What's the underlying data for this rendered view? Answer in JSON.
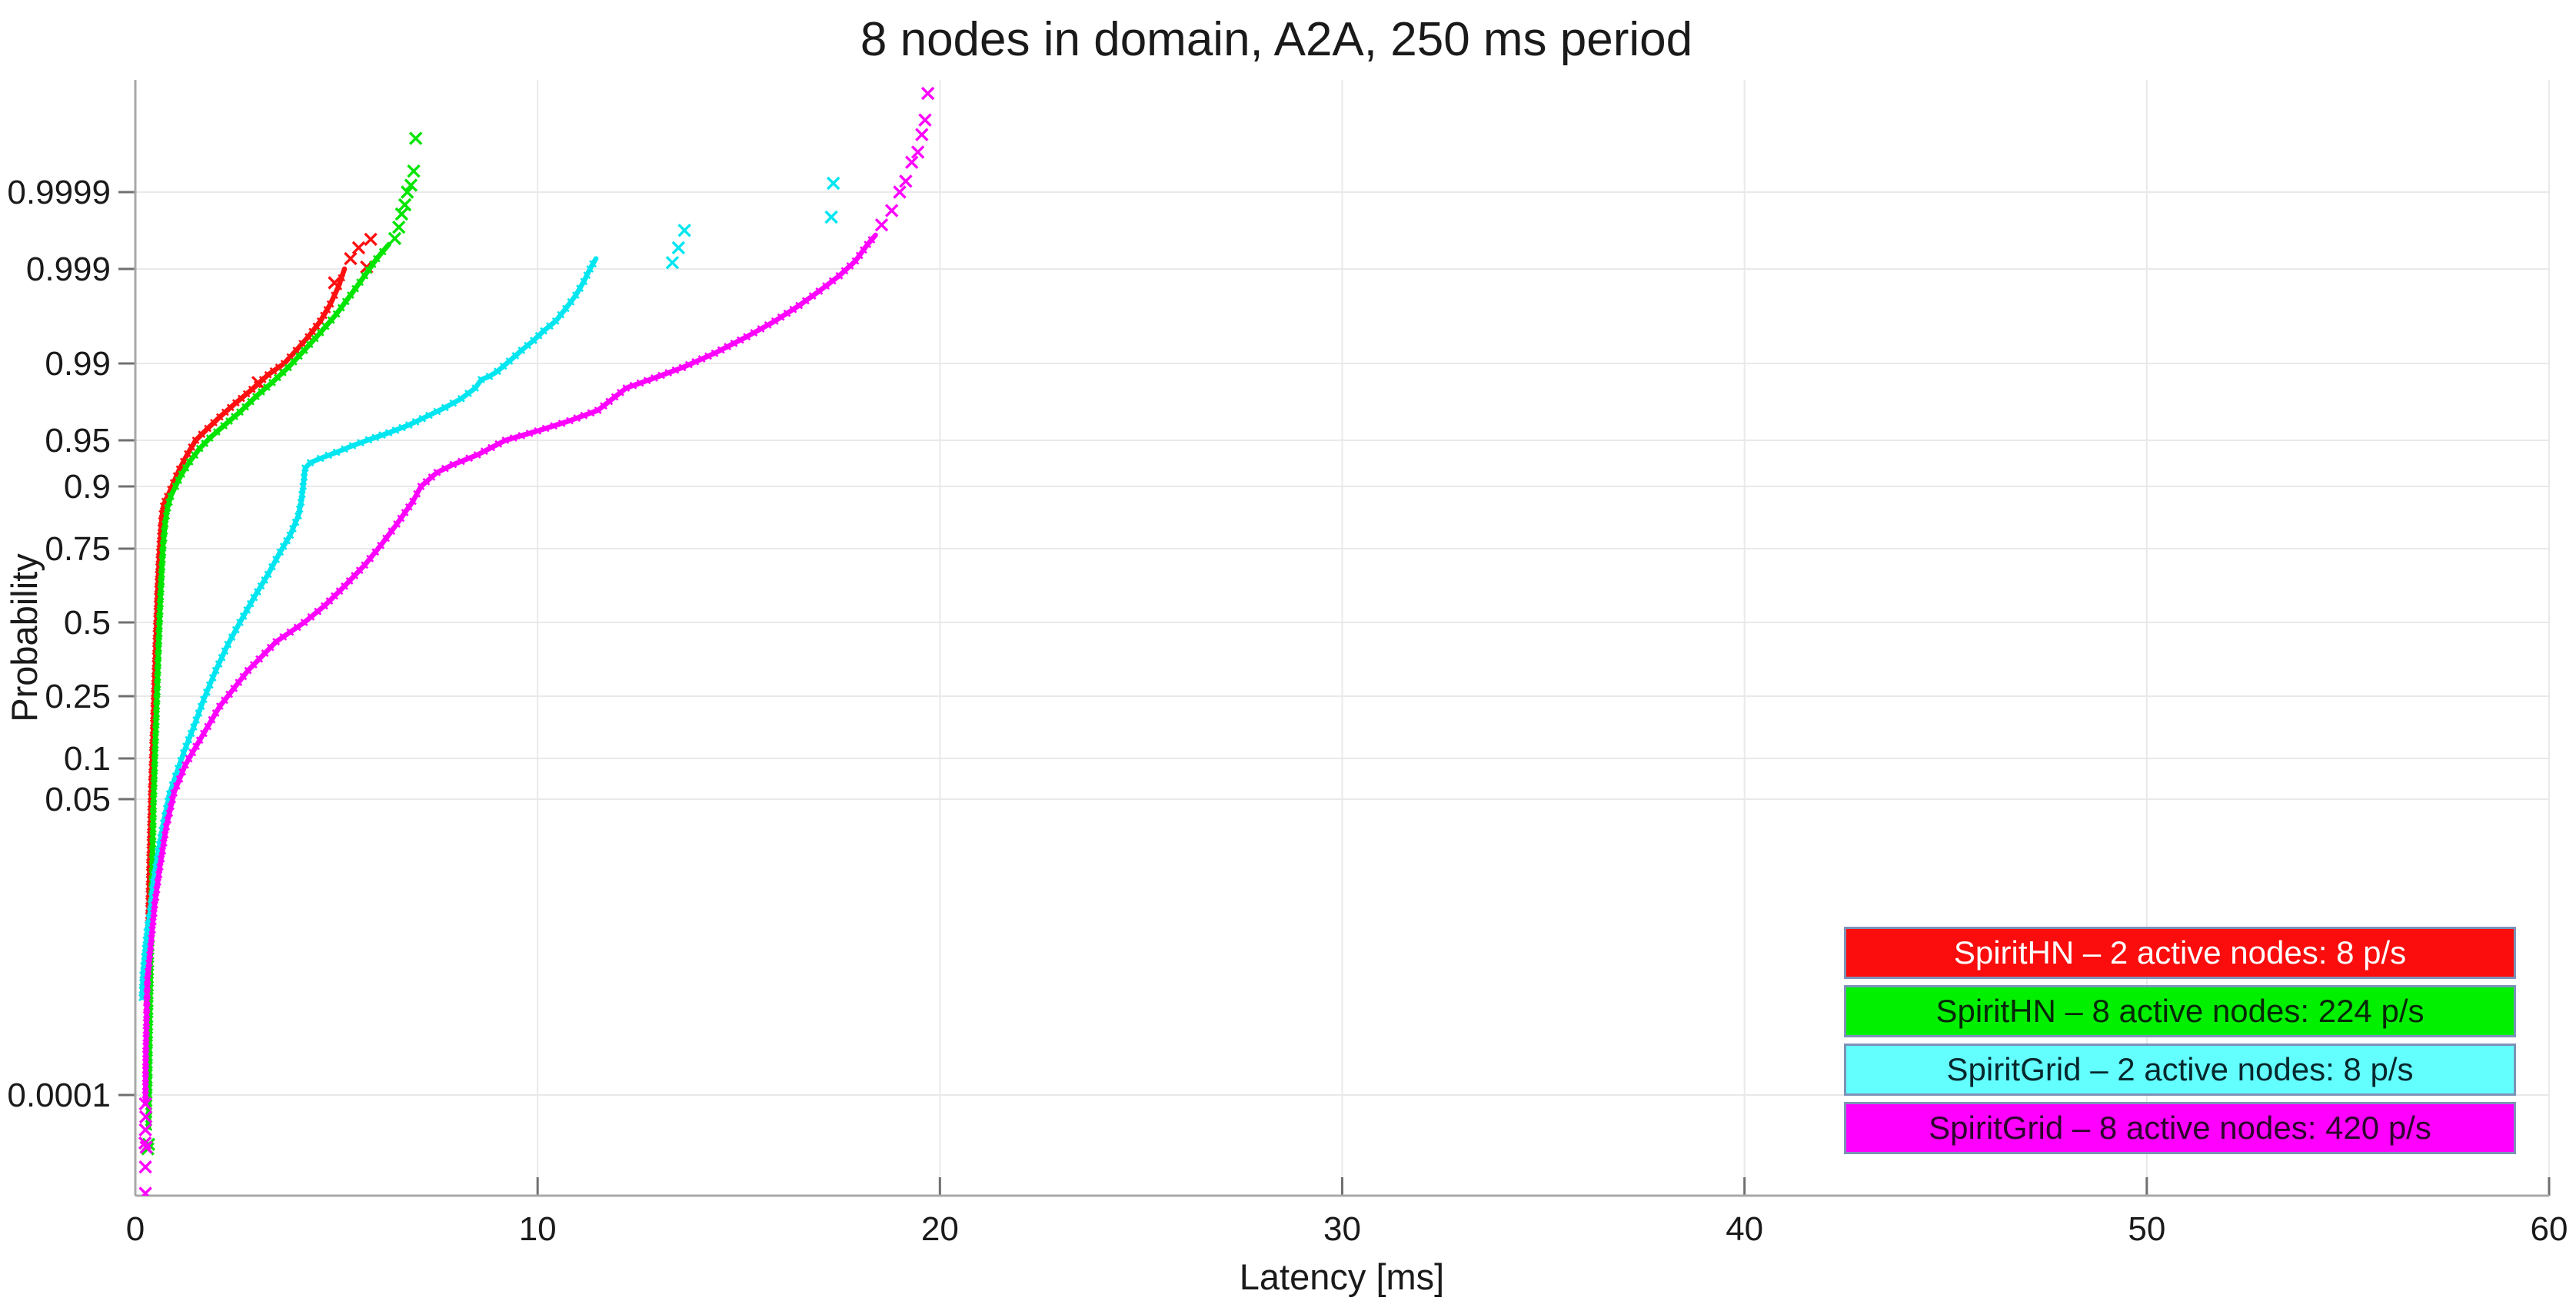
{
  "chart_data": {
    "type": "scatter",
    "title": "8 nodes in domain, A2A, 250 ms period",
    "xlabel": "Latency [ms]",
    "ylabel": "Probability",
    "x_ticks": [
      0,
      10,
      20,
      30,
      40,
      50,
      60
    ],
    "y_ticks": [
      0.0001,
      0.05,
      0.1,
      0.25,
      0.5,
      0.75,
      0.9,
      0.95,
      0.99,
      0.999,
      0.9999
    ],
    "xlim": [
      0,
      60
    ],
    "y_scale": "probit-normal-probability",
    "grid": true,
    "marker": "x",
    "legend_position": "lower-right",
    "style": {
      "grid_color": "#e9e9e9",
      "axis_color": "#a8a8a8",
      "tick_color": "#707070",
      "legend_border_color": "#7d92b8",
      "background": "#ffffff"
    },
    "series": [
      {
        "name": "SpiritHN - 2 active nodes: 8 p/s",
        "label": "SpiritHN – 2 active nodes: 8 p/s",
        "color": "#ff1010",
        "legend_color": "#fb0d0d",
        "label_color": "#ffffff",
        "curve": [
          [
            0.27,
            0.0002
          ],
          [
            0.29,
            0.0008
          ],
          [
            0.31,
            0.002
          ],
          [
            0.33,
            0.006
          ],
          [
            0.36,
            0.02
          ],
          [
            0.4,
            0.06
          ],
          [
            0.44,
            0.14
          ],
          [
            0.48,
            0.28
          ],
          [
            0.52,
            0.46
          ],
          [
            0.56,
            0.62
          ],
          [
            0.6,
            0.74
          ],
          [
            0.64,
            0.81
          ],
          [
            0.67,
            0.845
          ],
          [
            0.7,
            0.862
          ],
          [
            0.74,
            0.872
          ],
          [
            0.8,
            0.882
          ],
          [
            0.88,
            0.895
          ],
          [
            0.95,
            0.905
          ],
          [
            1.1,
            0.922
          ],
          [
            1.3,
            0.938
          ],
          [
            1.5,
            0.95
          ],
          [
            1.8,
            0.96
          ],
          [
            2.1,
            0.968
          ],
          [
            2.5,
            0.976
          ],
          [
            2.9,
            0.982
          ],
          [
            3.3,
            0.987
          ],
          [
            3.7,
            0.99
          ],
          [
            4.0,
            0.9925
          ],
          [
            4.3,
            0.9945
          ],
          [
            4.6,
            0.9962
          ],
          [
            4.85,
            0.9975
          ],
          [
            5.05,
            0.9984
          ],
          [
            5.2,
            0.999
          ]
        ],
        "outliers": [
          [
            5.35,
            0.99925
          ],
          [
            5.55,
            0.99945
          ],
          [
            5.75,
            0.99905
          ],
          [
            5.85,
            0.99957
          ],
          [
            4.95,
            0.99855
          ],
          [
            3.05,
            0.9845
          ]
        ]
      },
      {
        "name": "SpiritHN - 8 active nodes: 224 p/s",
        "label": "SpiritHN – 8 active nodes: 224 p/s",
        "color": "#00e400",
        "legend_color": "#00f000",
        "label_color": "#062806",
        "curve": [
          [
            0.33,
            4e-05
          ],
          [
            0.34,
            0.0001
          ],
          [
            0.35,
            0.0004
          ],
          [
            0.37,
            0.0015
          ],
          [
            0.39,
            0.005
          ],
          [
            0.42,
            0.015
          ],
          [
            0.45,
            0.045
          ],
          [
            0.49,
            0.11
          ],
          [
            0.53,
            0.22
          ],
          [
            0.57,
            0.38
          ],
          [
            0.61,
            0.54
          ],
          [
            0.65,
            0.67
          ],
          [
            0.69,
            0.76
          ],
          [
            0.74,
            0.82
          ],
          [
            0.8,
            0.858
          ],
          [
            0.88,
            0.882
          ],
          [
            1.0,
            0.9
          ],
          [
            1.15,
            0.916
          ],
          [
            1.35,
            0.93
          ],
          [
            1.6,
            0.943
          ],
          [
            1.85,
            0.952
          ],
          [
            2.2,
            0.962
          ],
          [
            2.6,
            0.971
          ],
          [
            3.0,
            0.979
          ],
          [
            3.4,
            0.9845
          ],
          [
            3.8,
            0.989
          ],
          [
            4.2,
            0.9925
          ],
          [
            4.6,
            0.995
          ],
          [
            5.0,
            0.9968
          ],
          [
            5.35,
            0.998
          ],
          [
            5.7,
            0.9988
          ],
          [
            6.0,
            0.99925
          ],
          [
            6.3,
            0.9995
          ]
        ],
        "outliers": [
          [
            6.45,
            0.99958
          ],
          [
            6.55,
            0.9997
          ],
          [
            6.62,
            0.9998
          ],
          [
            6.7,
            0.99985
          ],
          [
            6.76,
            0.9999
          ],
          [
            6.85,
            0.99992
          ],
          [
            6.92,
            0.99995
          ],
          [
            6.97,
            0.999984
          ],
          [
            0.33,
            2.4e-05
          ],
          [
            0.31,
            2.1e-05
          ]
        ]
      },
      {
        "name": "SpiritGrid - 2 active nodes: 8 p/s",
        "label": "SpiritGrid – 2 active nodes: 8 p/s",
        "color": "#00e6f0",
        "legend_color": "#63ffff",
        "label_color": "#06282d",
        "curve": [
          [
            0.17,
            0.0012
          ],
          [
            0.19,
            0.002
          ],
          [
            0.23,
            0.003
          ],
          [
            0.29,
            0.005
          ],
          [
            0.37,
            0.0075
          ],
          [
            0.45,
            0.013
          ],
          [
            0.57,
            0.022
          ],
          [
            0.7,
            0.035
          ],
          [
            0.85,
            0.055
          ],
          [
            1.0,
            0.075
          ],
          [
            1.2,
            0.11
          ],
          [
            1.45,
            0.165
          ],
          [
            1.7,
            0.24
          ],
          [
            2.0,
            0.33
          ],
          [
            2.3,
            0.42
          ],
          [
            2.6,
            0.5
          ],
          [
            2.95,
            0.59
          ],
          [
            3.3,
            0.67
          ],
          [
            3.6,
            0.74
          ],
          [
            3.85,
            0.79
          ],
          [
            4.05,
            0.84
          ],
          [
            4.12,
            0.87
          ],
          [
            4.17,
            0.9
          ],
          [
            4.22,
            0.923
          ],
          [
            4.35,
            0.929
          ],
          [
            4.6,
            0.9335
          ],
          [
            5.0,
            0.9395
          ],
          [
            5.4,
            0.9455
          ],
          [
            5.8,
            0.9505
          ],
          [
            6.3,
            0.9565
          ],
          [
            6.8,
            0.9625
          ],
          [
            7.3,
            0.969
          ],
          [
            7.7,
            0.9735
          ],
          [
            8.1,
            0.978
          ],
          [
            8.45,
            0.9825
          ],
          [
            8.6,
            0.9855
          ],
          [
            8.8,
            0.9865
          ],
          [
            9.0,
            0.988
          ],
          [
            9.3,
            0.9905
          ],
          [
            9.6,
            0.9925
          ],
          [
            9.9,
            0.994
          ],
          [
            10.15,
            0.9952
          ],
          [
            10.45,
            0.9962
          ],
          [
            10.7,
            0.9972
          ],
          [
            10.95,
            0.998
          ],
          [
            11.15,
            0.9986
          ],
          [
            11.3,
            0.999
          ],
          [
            11.45,
            0.99925
          ]
        ],
        "outliers": [
          [
            13.35,
            0.99916
          ],
          [
            13.5,
            0.99945
          ],
          [
            13.65,
            0.99967
          ],
          [
            17.3,
            0.99978
          ],
          [
            17.35,
            0.999925
          ]
        ]
      },
      {
        "name": "SpiritGrid - 8 active nodes: 420 p/s",
        "label": "SpiritGrid – 8 active nodes: 420 p/s",
        "color": "#ff00ff",
        "legend_color": "#ff00ff",
        "label_color": "#2d062d",
        "curve": [
          [
            0.25,
            8e-05
          ],
          [
            0.26,
            0.0003
          ],
          [
            0.28,
            0.0008
          ],
          [
            0.3,
            0.0018
          ],
          [
            0.38,
            0.0037
          ],
          [
            0.48,
            0.0085
          ],
          [
            0.61,
            0.017
          ],
          [
            0.77,
            0.033
          ],
          [
            0.96,
            0.056
          ],
          [
            1.24,
            0.09
          ],
          [
            1.6,
            0.135
          ],
          [
            2.1,
            0.22
          ],
          [
            2.8,
            0.33
          ],
          [
            3.5,
            0.43
          ],
          [
            4.2,
            0.5
          ],
          [
            4.7,
            0.56
          ],
          [
            5.2,
            0.63
          ],
          [
            5.7,
            0.7
          ],
          [
            6.1,
            0.76
          ],
          [
            6.5,
            0.82
          ],
          [
            6.9,
            0.872
          ],
          [
            7.1,
            0.9
          ],
          [
            7.5,
            0.918
          ],
          [
            7.9,
            0.927
          ],
          [
            8.5,
            0.937
          ],
          [
            9.2,
            0.95
          ],
          [
            10.0,
            0.958
          ],
          [
            10.8,
            0.9655
          ],
          [
            11.5,
            0.972
          ],
          [
            12.2,
            0.9825
          ],
          [
            12.9,
            0.986
          ],
          [
            13.6,
            0.989
          ],
          [
            14.4,
            0.992
          ],
          [
            15.2,
            0.9945
          ],
          [
            15.9,
            0.9962
          ],
          [
            16.5,
            0.9974
          ],
          [
            17.0,
            0.9982
          ],
          [
            17.5,
            0.9988
          ],
          [
            17.9,
            0.9992
          ],
          [
            18.2,
            0.9995
          ],
          [
            18.4,
            0.99962
          ]
        ],
        "outliers": [
          [
            18.55,
            0.99972
          ],
          [
            18.8,
            0.99982
          ],
          [
            19.0,
            0.9999
          ],
          [
            19.15,
            0.99993
          ],
          [
            19.3,
            0.999963
          ],
          [
            19.45,
            0.999974
          ],
          [
            19.55,
            0.999986
          ],
          [
            19.63,
            0.9999918
          ],
          [
            19.7,
            0.999997
          ],
          [
            0.25,
            7.8e-05
          ],
          [
            0.26,
            5.4e-05
          ],
          [
            0.25,
            3.7e-05
          ],
          [
            0.24,
            2.5e-05
          ],
          [
            0.27,
            2.2e-05
          ],
          [
            0.25,
            1.2e-05
          ],
          [
            0.25,
            5.2e-06
          ]
        ]
      }
    ]
  }
}
